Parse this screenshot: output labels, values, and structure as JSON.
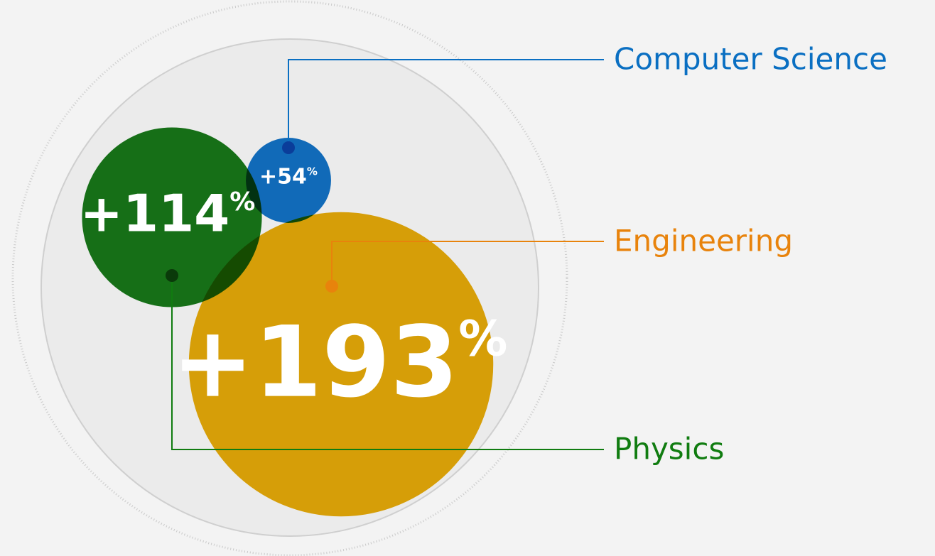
{
  "chart_data": {
    "type": "bubble",
    "categories": [
      "Computer Science",
      "Physics",
      "Engineering"
    ],
    "values": [
      54,
      114,
      193
    ],
    "value_labels": [
      "+54%",
      "+114%",
      "+193%"
    ],
    "colors": [
      "#0a6ec6",
      "#0f7412",
      "#e8a900"
    ],
    "label_colors": [
      "#0a6fc2",
      "#107c10",
      "#e8830c"
    ]
  }
}
